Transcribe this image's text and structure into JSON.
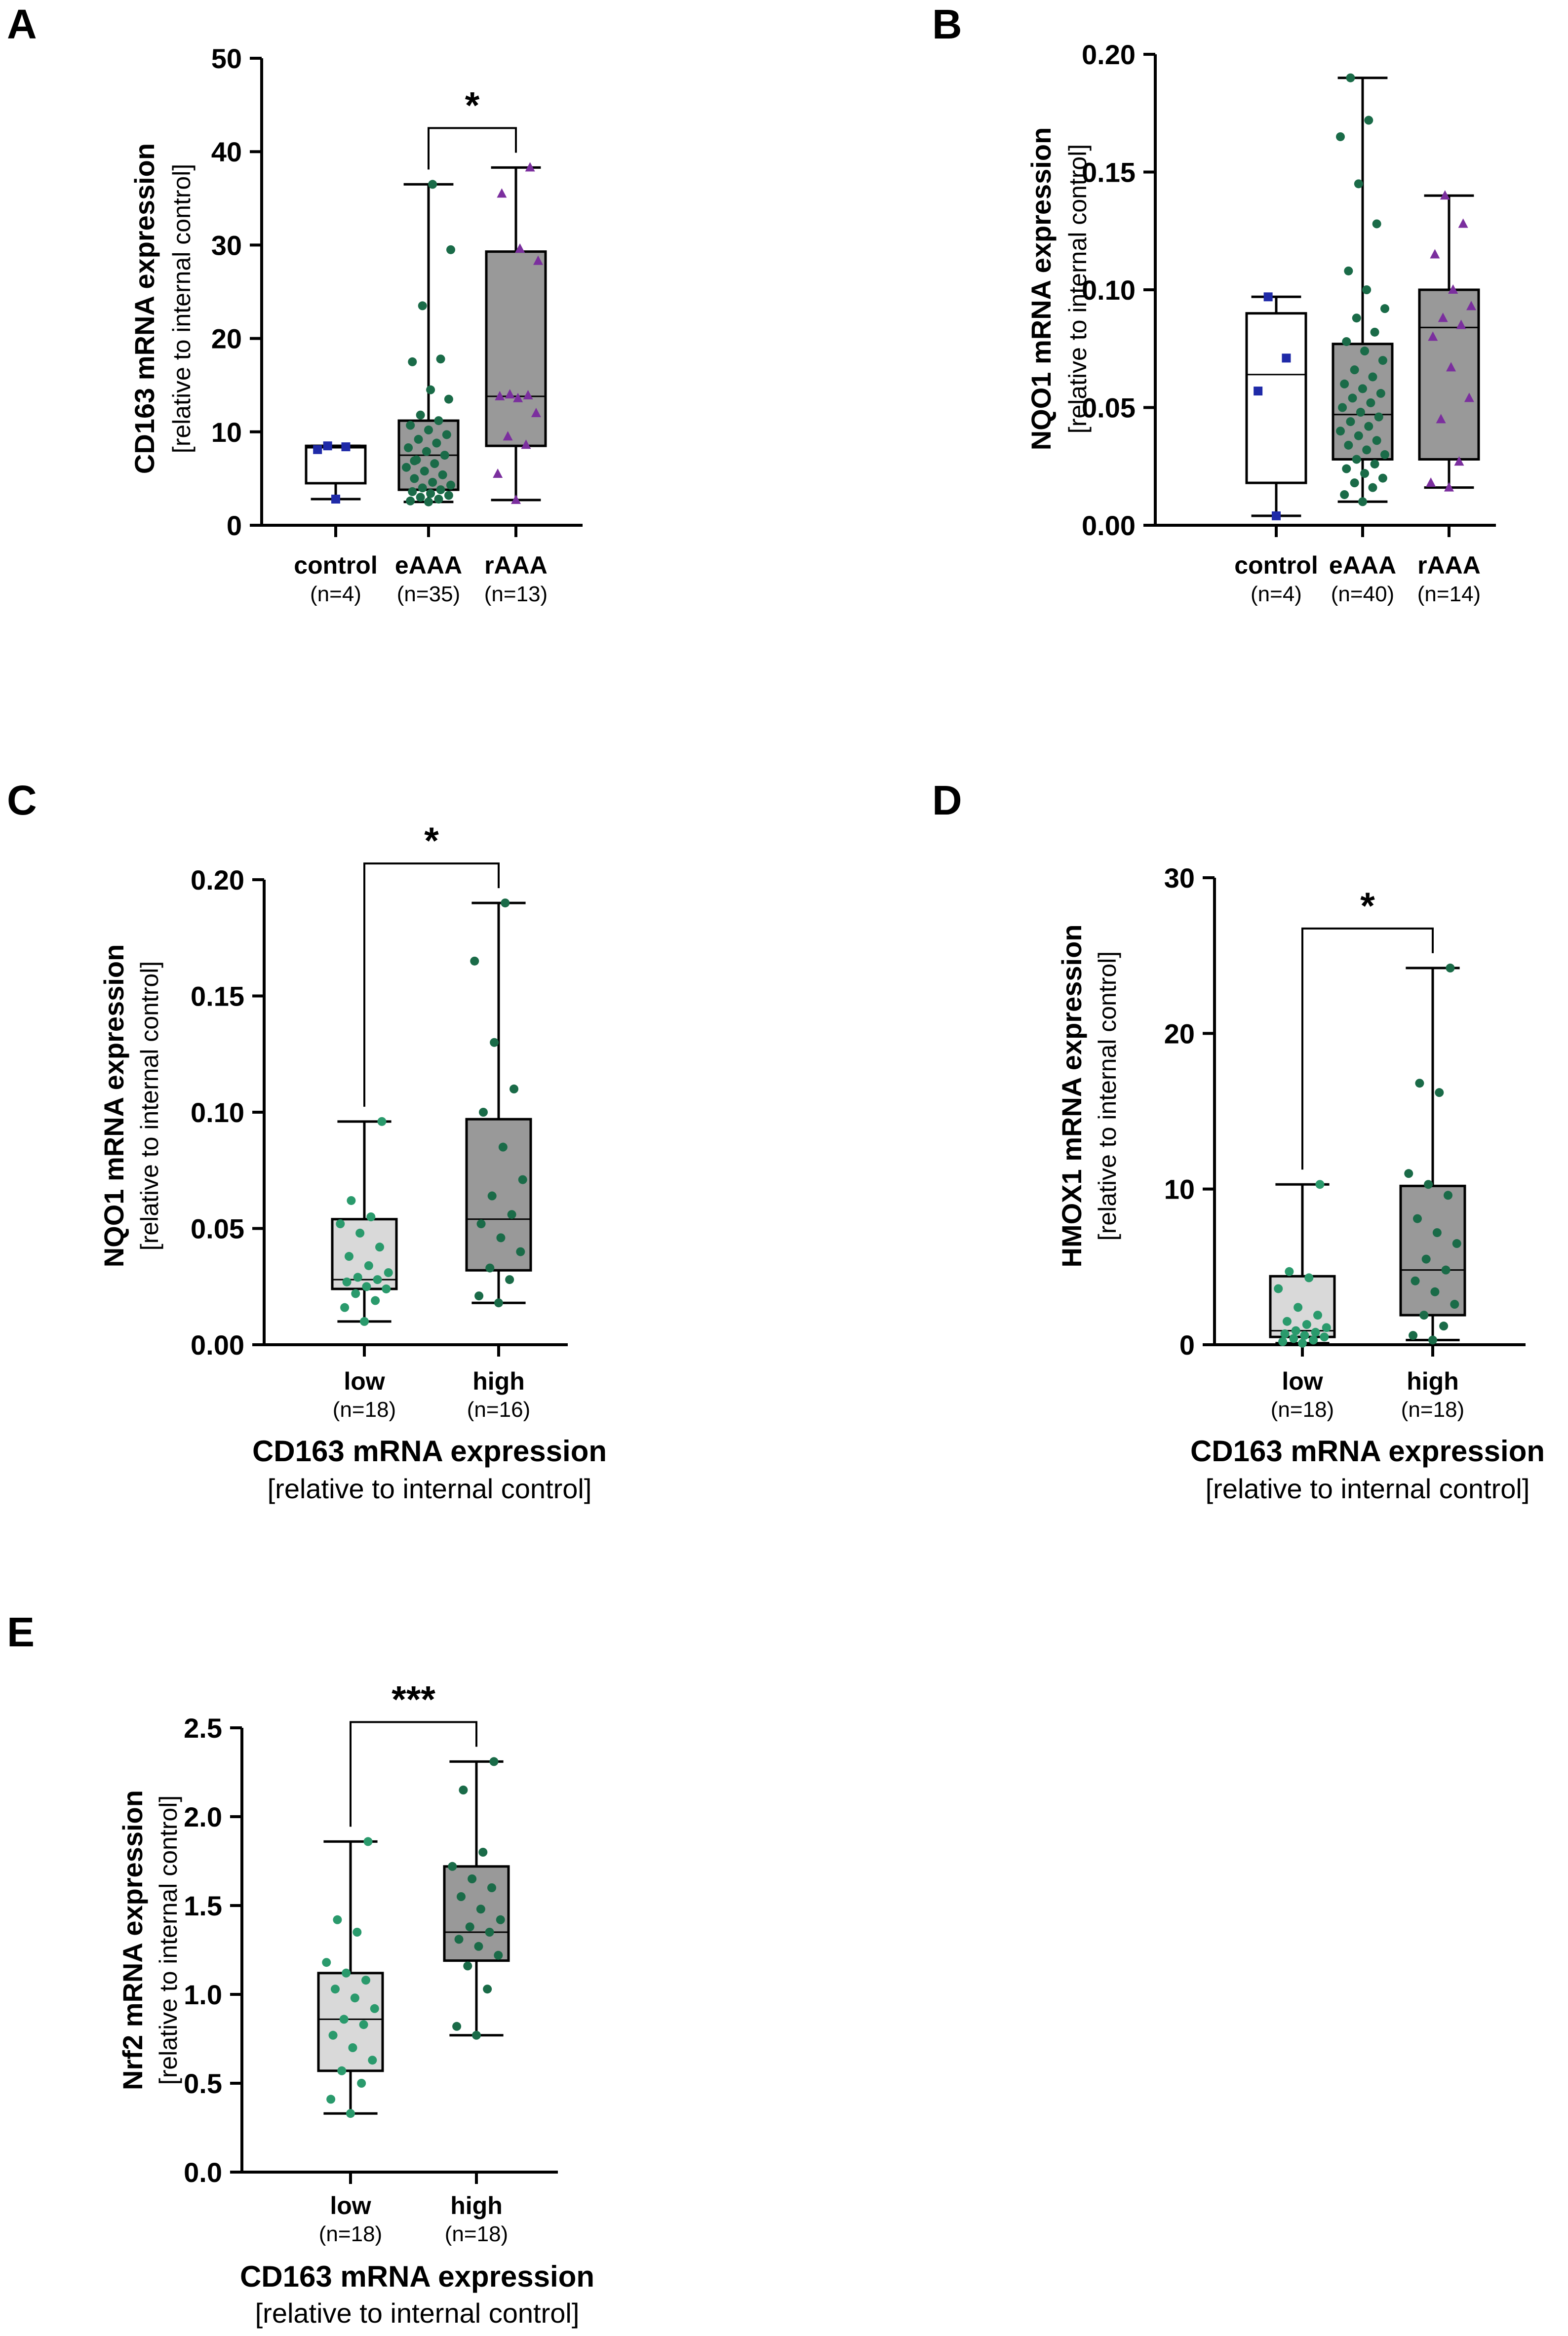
{
  "colors": {
    "control_points": "#1f2aa8",
    "eAAA_points": "#1a6b48",
    "rAAA_points": "#7b2f9e",
    "low_points": "#2a9a6c",
    "high_points": "#1a6b48",
    "white_box": "#ffffff",
    "light_box": "#d9d9d9",
    "dark_box": "#999999"
  },
  "chart_data": [
    {
      "panel": "A",
      "type": "box",
      "ylabel": "CD163 mRNA expression",
      "ylabel_sub": "[relative to internal control]",
      "xlabel": "",
      "xlabel_sub": "",
      "ylim": [
        0,
        50
      ],
      "yticks": [
        "0",
        "10",
        "20",
        "30",
        "40",
        "50"
      ],
      "groups": [
        {
          "name": "control",
          "n_label": "(n=4)",
          "box_color": "white",
          "marker": "square",
          "point_color": "control_points",
          "min": 2.8,
          "q1": 4.5,
          "median": 8.3,
          "q3": 8.5,
          "max": 8.5,
          "points": [
            2.8,
            8.1,
            8.4,
            8.5
          ]
        },
        {
          "name": "eAAA",
          "n_label": "(n=35)",
          "box_color": "dark",
          "marker": "circle",
          "point_color": "eAAA_points",
          "min": 2.5,
          "q1": 3.8,
          "median": 7.5,
          "q3": 11.2,
          "max": 36.5,
          "points": [
            2.5,
            2.6,
            2.8,
            3.0,
            3.2,
            3.4,
            3.6,
            3.8,
            4.0,
            4.3,
            4.6,
            5.0,
            5.4,
            5.8,
            6.2,
            6.6,
            7.0,
            7.5,
            7.9,
            8.3,
            8.8,
            9.2,
            9.7,
            10.2,
            10.7,
            11.2,
            11.8,
            13.5,
            14.5,
            17.5,
            17.8,
            23.5,
            29.5,
            36.5,
            6.9
          ]
        },
        {
          "name": "rAAA",
          "n_label": "(n=13)",
          "box_color": "dark",
          "marker": "triangle",
          "point_color": "rAAA_points",
          "min": 2.7,
          "q1": 8.5,
          "median": 13.8,
          "q3": 29.3,
          "max": 38.3,
          "points": [
            2.7,
            5.5,
            8.6,
            9.5,
            12.0,
            13.6,
            13.8,
            13.9,
            14.0,
            28.3,
            29.6,
            35.5,
            38.3
          ]
        }
      ],
      "significance": [
        {
          "from": 1,
          "to": 2,
          "label": "*"
        }
      ]
    },
    {
      "panel": "B",
      "type": "box",
      "ylabel": "NQO1 mRNA expression",
      "ylabel_sub": "[relative to internal control]",
      "xlabel": "",
      "xlabel_sub": "",
      "ylim": [
        0,
        0.2
      ],
      "yticks": [
        "0.00",
        "0.05",
        "0.10",
        "0.15",
        "0.20"
      ],
      "groups": [
        {
          "name": "control",
          "n_label": "(n=4)",
          "box_color": "white",
          "marker": "square",
          "point_color": "control_points",
          "min": 0.004,
          "q1": 0.018,
          "median": 0.064,
          "q3": 0.09,
          "max": 0.097,
          "points": [
            0.004,
            0.057,
            0.071,
            0.097
          ]
        },
        {
          "name": "eAAA",
          "n_label": "(n=40)",
          "box_color": "dark",
          "marker": "circle",
          "point_color": "eAAA_points",
          "min": 0.01,
          "q1": 0.028,
          "median": 0.047,
          "q3": 0.077,
          "max": 0.19,
          "points": [
            0.01,
            0.013,
            0.016,
            0.018,
            0.02,
            0.022,
            0.024,
            0.026,
            0.028,
            0.03,
            0.032,
            0.034,
            0.036,
            0.038,
            0.04,
            0.042,
            0.044,
            0.046,
            0.048,
            0.05,
            0.052,
            0.054,
            0.056,
            0.058,
            0.06,
            0.063,
            0.066,
            0.07,
            0.074,
            0.078,
            0.082,
            0.088,
            0.092,
            0.1,
            0.108,
            0.128,
            0.145,
            0.165,
            0.172,
            0.19
          ]
        },
        {
          "name": "rAAA",
          "n_label": "(n=14)",
          "box_color": "dark",
          "marker": "triangle",
          "point_color": "rAAA_points",
          "min": 0.016,
          "q1": 0.028,
          "median": 0.084,
          "q3": 0.1,
          "max": 0.14,
          "points": [
            0.016,
            0.018,
            0.027,
            0.045,
            0.054,
            0.067,
            0.08,
            0.085,
            0.088,
            0.093,
            0.1,
            0.115,
            0.128,
            0.14
          ]
        }
      ],
      "significance": []
    },
    {
      "panel": "C",
      "type": "box",
      "ylabel": "NQO1 mRNA expression",
      "ylabel_sub": "[relative to internal control]",
      "xlabel": "CD163 mRNA expression",
      "xlabel_sub": "[relative to internal control]",
      "ylim": [
        0,
        0.2
      ],
      "yticks": [
        "0.00",
        "0.05",
        "0.10",
        "0.15",
        "0.20"
      ],
      "groups": [
        {
          "name": "low",
          "n_label": "(n=18)",
          "box_color": "light",
          "marker": "circle",
          "point_color": "low_points",
          "min": 0.01,
          "q1": 0.024,
          "median": 0.028,
          "q3": 0.054,
          "max": 0.096,
          "points": [
            0.01,
            0.016,
            0.019,
            0.022,
            0.024,
            0.025,
            0.027,
            0.028,
            0.029,
            0.031,
            0.034,
            0.038,
            0.042,
            0.048,
            0.052,
            0.055,
            0.062,
            0.096
          ]
        },
        {
          "name": "high",
          "n_label": "(n=16)",
          "box_color": "dark",
          "marker": "circle",
          "point_color": "high_points",
          "min": 0.018,
          "q1": 0.032,
          "median": 0.054,
          "q3": 0.097,
          "max": 0.19,
          "points": [
            0.018,
            0.021,
            0.028,
            0.033,
            0.04,
            0.046,
            0.052,
            0.056,
            0.064,
            0.071,
            0.085,
            0.1,
            0.11,
            0.13,
            0.165,
            0.19
          ]
        }
      ],
      "significance": [
        {
          "from": 0,
          "to": 1,
          "label": "*"
        }
      ]
    },
    {
      "panel": "D",
      "type": "box",
      "ylabel": "HMOX1 mRNA expression",
      "ylabel_sub": "[relative to internal control]",
      "xlabel": "CD163 mRNA expression",
      "xlabel_sub": "[relative to internal control]",
      "ylim": [
        0,
        30
      ],
      "yticks": [
        "0",
        "10",
        "20",
        "30"
      ],
      "groups": [
        {
          "name": "low",
          "n_label": "(n=18)",
          "box_color": "light",
          "marker": "circle",
          "point_color": "low_points",
          "min": 0.1,
          "q1": 0.5,
          "median": 0.9,
          "q3": 4.4,
          "max": 10.3,
          "points": [
            0.1,
            0.2,
            0.3,
            0.4,
            0.5,
            0.6,
            0.7,
            0.8,
            0.9,
            1.1,
            1.3,
            1.5,
            1.9,
            2.4,
            3.6,
            4.3,
            4.7,
            10.3
          ]
        },
        {
          "name": "high",
          "n_label": "(n=18)",
          "box_color": "dark",
          "marker": "circle",
          "point_color": "high_points",
          "min": 0.3,
          "q1": 1.9,
          "median": 4.8,
          "q3": 10.2,
          "max": 24.2,
          "points": [
            0.3,
            0.6,
            1.2,
            1.9,
            2.6,
            3.4,
            4.1,
            4.8,
            5.5,
            6.5,
            7.2,
            8.1,
            9.6,
            10.3,
            11.0,
            16.2,
            16.8,
            24.2
          ]
        }
      ],
      "significance": [
        {
          "from": 0,
          "to": 1,
          "label": "*"
        }
      ]
    },
    {
      "panel": "E",
      "type": "box",
      "ylabel": "Nrf2 mRNA expression",
      "ylabel_sub": "[relative to internal control]",
      "xlabel": "CD163 mRNA expression",
      "xlabel_sub": "[relative to internal control]",
      "ylim": [
        0,
        2.5
      ],
      "yticks": [
        "0.0",
        "0.5",
        "1.0",
        "1.5",
        "2.0",
        "2.5"
      ],
      "groups": [
        {
          "name": "low",
          "n_label": "(n=18)",
          "box_color": "light",
          "marker": "circle",
          "point_color": "low_points",
          "min": 0.33,
          "q1": 0.57,
          "median": 0.86,
          "q3": 1.12,
          "max": 1.86,
          "points": [
            0.33,
            0.41,
            0.5,
            0.57,
            0.63,
            0.7,
            0.77,
            0.83,
            0.86,
            0.92,
            0.98,
            1.03,
            1.08,
            1.12,
            1.18,
            1.35,
            1.42,
            1.86
          ]
        },
        {
          "name": "high",
          "n_label": "(n=18)",
          "box_color": "dark",
          "marker": "circle",
          "point_color": "high_points",
          "min": 0.77,
          "q1": 1.19,
          "median": 1.35,
          "q3": 1.72,
          "max": 2.31,
          "points": [
            0.77,
            0.82,
            1.03,
            1.16,
            1.22,
            1.27,
            1.31,
            1.35,
            1.38,
            1.42,
            1.48,
            1.55,
            1.6,
            1.65,
            1.72,
            1.8,
            2.15,
            2.31
          ]
        }
      ],
      "significance": [
        {
          "from": 0,
          "to": 1,
          "label": "***"
        }
      ]
    }
  ]
}
